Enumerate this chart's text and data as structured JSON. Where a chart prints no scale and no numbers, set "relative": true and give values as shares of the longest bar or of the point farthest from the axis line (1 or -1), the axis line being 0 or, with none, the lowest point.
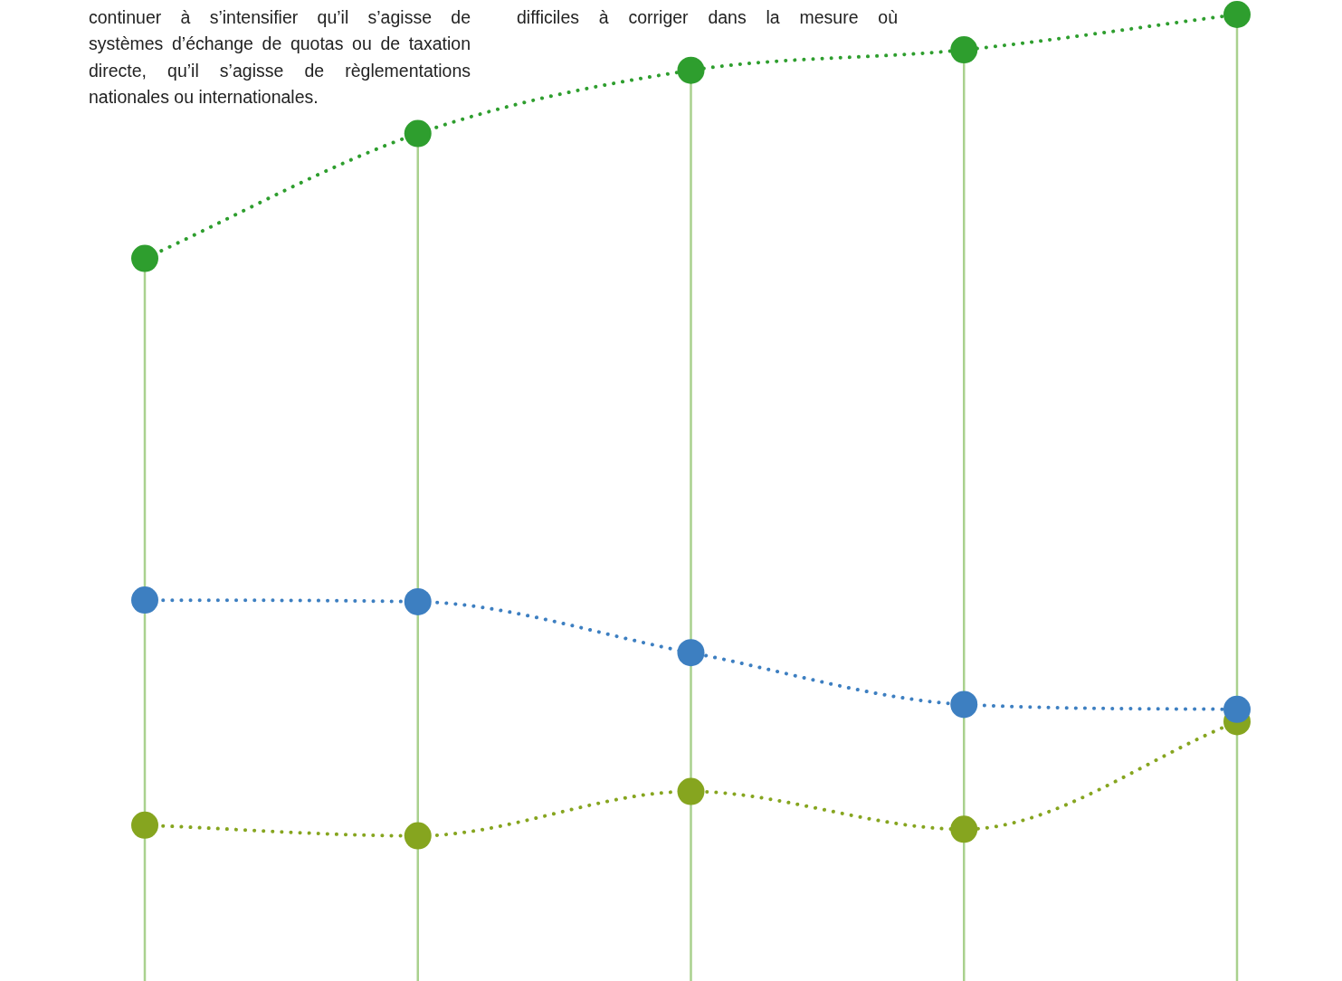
{
  "chart_data": {
    "type": "line",
    "relative": true,
    "categories": [
      null,
      null,
      null,
      null,
      null
    ],
    "series": [
      {
        "color": "#2e9e2e",
        "values": [
          0.703,
          0.855,
          0.932,
          0.957,
          1
        ]
      },
      {
        "color": "#3d7fc1",
        "values": [
          0.287,
          0.285,
          0.223,
          0.16,
          0.154
        ]
      },
      {
        "color": "#86a51f",
        "values": [
          0.013,
          0,
          0.054,
          0.008,
          0.139
        ]
      }
    ],
    "annotations": [
      "continuer à s’intensifier qu’il s’agisse de systèmes d’échange de quotas ou de taxation directe, qu’il s’agisse de règlementations nationales ou internationales.",
      "difficiles à corriger dans la mesure où"
    ],
    "grid": "x",
    "legend": false,
    "marker": "circle",
    "line_style": "dotted"
  }
}
